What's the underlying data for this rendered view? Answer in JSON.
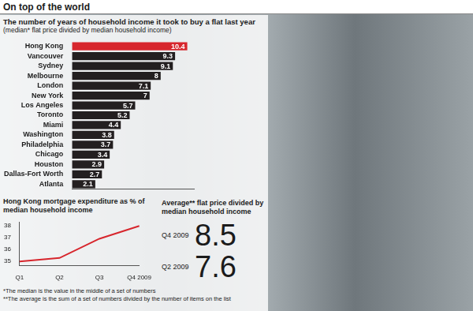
{
  "title": "On top of the world",
  "chart_data": [
    {
      "type": "bar",
      "orientation": "horizontal",
      "title": "The number of years of household income it took to buy a flat last year",
      "subtitle": "(median* flat price divided by median household income)",
      "categories": [
        "Hong Kong",
        "Vancouver",
        "Sydney",
        "Melbourne",
        "London",
        "New York",
        "Los Angeles",
        "Toronto",
        "Miami",
        "Washington",
        "Philadelphia",
        "Chicago",
        "Houston",
        "Dallas-Fort Worth",
        "Atlanta"
      ],
      "values": [
        10.4,
        9.3,
        9.1,
        8,
        7.1,
        7,
        5.7,
        5.2,
        4.4,
        3.8,
        3.7,
        3.4,
        2.9,
        2.7,
        2.1
      ],
      "colors": [
        "#d7262d",
        "#231f20",
        "#231f20",
        "#231f20",
        "#231f20",
        "#231f20",
        "#231f20",
        "#231f20",
        "#231f20",
        "#231f20",
        "#231f20",
        "#231f20",
        "#231f20",
        "#231f20",
        "#231f20"
      ],
      "xlim": [
        0,
        11
      ],
      "data_labels": true,
      "tick_labels": "y",
      "grid": false
    },
    {
      "type": "line",
      "title": "Hong Kong mortgage expenditure as % of median household income",
      "categories": [
        "Q1",
        "Q2",
        "Q3",
        "Q4 2009"
      ],
      "values": [
        34.95,
        35.25,
        36.9,
        38.0
      ],
      "color": "#d7262d",
      "ylim": [
        34.6,
        38.3
      ],
      "yticks": [
        35,
        36,
        37,
        38
      ],
      "grid": false
    }
  ],
  "callout": {
    "title": "Average** flat price divided by median household income",
    "items": [
      {
        "label": "Q4 2009",
        "value": 8.5
      },
      {
        "label": "Q2 2009",
        "value": 7.6
      }
    ]
  },
  "footnotes": [
    "*The median is the value in the middle of a set of numbers",
    "**The average is the sum of a set of numbers divided by the number of items on the list"
  ]
}
